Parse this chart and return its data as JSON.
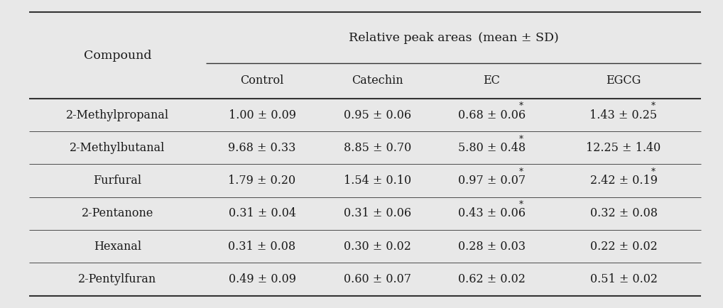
{
  "header_top": "Relative peak areas（mean ± SD）",
  "header_top_plain": "Relative peak areas　(mean ± SD)",
  "col_header": "Compound",
  "subheaders": [
    "Control",
    "Catechin",
    "EC",
    "EGCG"
  ],
  "rows": [
    {
      "compound": "2-Methylpropanal",
      "values": [
        "1.00 ± 0.09",
        "0.95 ± 0.06",
        "0.68 ± 0.06",
        "1.43 ± 0.25"
      ],
      "star": [
        false,
        false,
        true,
        true
      ]
    },
    {
      "compound": "2-Methylbutanal",
      "values": [
        "9.68 ± 0.33",
        "8.85 ± 0.70",
        "5.80 ± 0.48",
        "12.25 ± 1.40"
      ],
      "star": [
        false,
        false,
        true,
        false
      ]
    },
    {
      "compound": "Furfural",
      "values": [
        "1.79 ± 0.20",
        "1.54 ± 0.10",
        "0.97 ± 0.07",
        "2.42 ± 0.19"
      ],
      "star": [
        false,
        false,
        true,
        true
      ]
    },
    {
      "compound": "2-Pentanone",
      "values": [
        "0.31 ± 0.04",
        "0.31 ± 0.06",
        "0.43 ± 0.06",
        "0.32 ± 0.08"
      ],
      "star": [
        false,
        false,
        true,
        false
      ]
    },
    {
      "compound": "Hexanal",
      "values": [
        "0.31 ± 0.08",
        "0.30 ± 0.02",
        "0.28 ± 0.03",
        "0.22 ± 0.02"
      ],
      "star": [
        false,
        false,
        false,
        false
      ]
    },
    {
      "compound": "2-Pentylfuran",
      "values": [
        "0.49 ± 0.09",
        "0.60 ± 0.07",
        "0.62 ± 0.02",
        "0.51 ± 0.02"
      ],
      "star": [
        false,
        false,
        false,
        false
      ]
    }
  ],
  "bg_color": "#e8e8e8",
  "text_color": "#1a1a1a",
  "font_size": 11.5,
  "header_font_size": 12.5
}
